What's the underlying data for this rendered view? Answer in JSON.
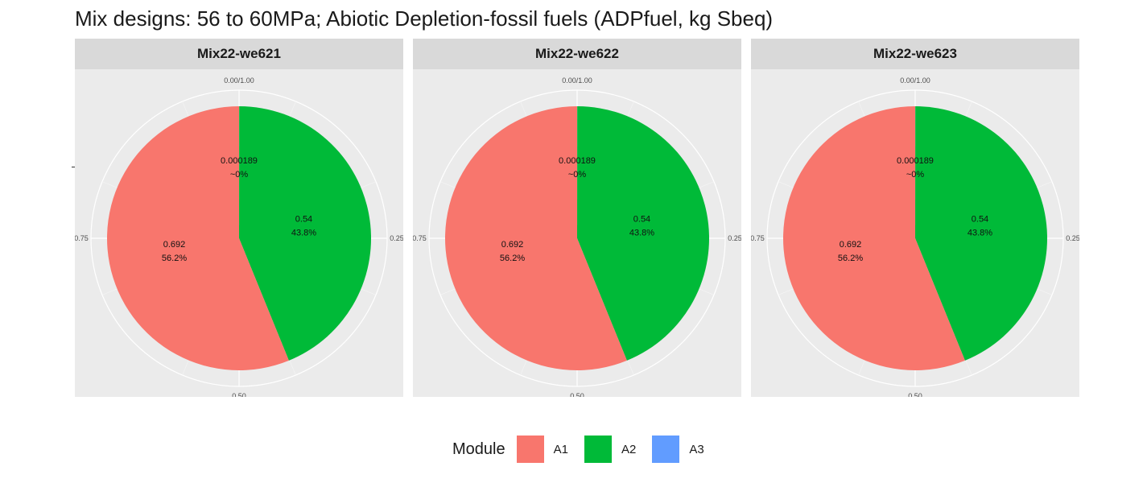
{
  "title": "Mix designs: 56 to 60MPa; Abiotic Depletion-fossil fuels (ADPfuel, kg Sbeq)",
  "colors": {
    "A1": "#F8766D",
    "A2": "#00BA38",
    "A3": "#619CFF"
  },
  "legend": {
    "title": "Module",
    "items": [
      {
        "label": "A1",
        "color": "#F8766D"
      },
      {
        "label": "A2",
        "color": "#00BA38"
      },
      {
        "label": "A3",
        "color": "#619CFF"
      }
    ]
  },
  "chart_data": [
    {
      "type": "pie",
      "panel": "Mix22-we621",
      "theta_ticks": [
        "0.00/1.00",
        "0.25",
        "0.50",
        "0.75"
      ],
      "slices": [
        {
          "module": "A3",
          "value": 0.000189,
          "label_value": "0.000189",
          "label_pct": "~0%"
        },
        {
          "module": "A2",
          "value": 0.54,
          "label_value": "0.54",
          "label_pct": "43.8%"
        },
        {
          "module": "A1",
          "value": 0.692,
          "label_value": "0.692",
          "label_pct": "56.2%"
        }
      ]
    },
    {
      "type": "pie",
      "panel": "Mix22-we622",
      "theta_ticks": [
        "0.00/1.00",
        "0.25",
        "0.50",
        "0.75"
      ],
      "slices": [
        {
          "module": "A3",
          "value": 0.000189,
          "label_value": "0.000189",
          "label_pct": "~0%"
        },
        {
          "module": "A2",
          "value": 0.54,
          "label_value": "0.54",
          "label_pct": "43.8%"
        },
        {
          "module": "A1",
          "value": 0.692,
          "label_value": "0.692",
          "label_pct": "56.2%"
        }
      ]
    },
    {
      "type": "pie",
      "panel": "Mix22-we623",
      "theta_ticks": [
        "0.00/1.00",
        "0.25",
        "0.50",
        "0.75"
      ],
      "slices": [
        {
          "module": "A3",
          "value": 0.000189,
          "label_value": "0.000189",
          "label_pct": "~0%"
        },
        {
          "module": "A2",
          "value": 0.54,
          "label_value": "0.54",
          "label_pct": "43.8%"
        },
        {
          "module": "A1",
          "value": 0.692,
          "label_value": "0.692",
          "label_pct": "56.2%"
        }
      ]
    }
  ]
}
